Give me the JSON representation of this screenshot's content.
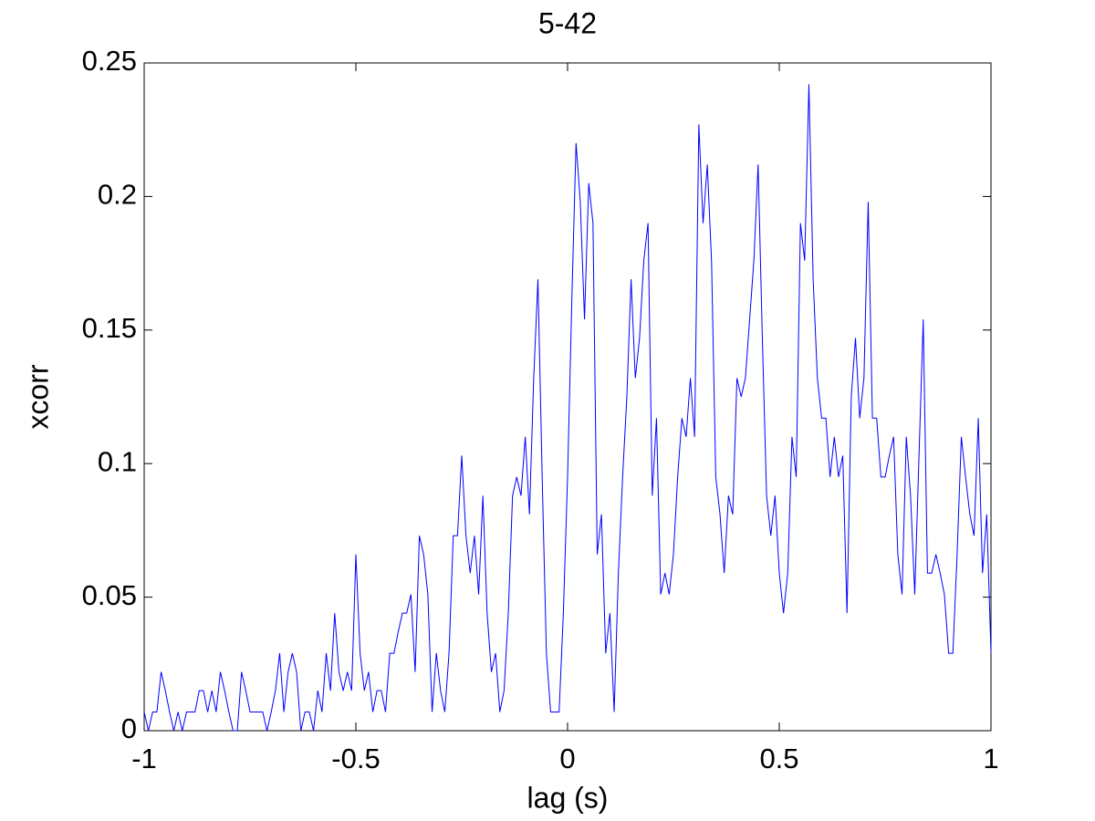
{
  "chart_data": {
    "type": "line",
    "title": "5-42",
    "x_label": "lag (s)",
    "y_label": "xcorr",
    "xlim": [
      -1,
      1
    ],
    "ylim": [
      0,
      0.25
    ],
    "xticks": [
      -1,
      -0.5,
      0,
      0.5,
      1
    ],
    "yticks": [
      0,
      0.05,
      0.1,
      0.15,
      0.2,
      0.25
    ],
    "grid": false,
    "series": [
      {
        "color": "#0000ff",
        "x": [
          -1,
          -0.99,
          -0.98,
          -0.97,
          -0.96,
          -0.95,
          -0.94,
          -0.93,
          -0.92,
          -0.91,
          -0.9,
          -0.89,
          -0.88,
          -0.87,
          -0.86,
          -0.85,
          -0.84,
          -0.83,
          -0.82,
          -0.81,
          -0.8,
          -0.79,
          -0.78,
          -0.77,
          -0.76,
          -0.75,
          -0.74,
          -0.73,
          -0.72,
          -0.71,
          -0.7,
          -0.69,
          -0.68,
          -0.67,
          -0.66,
          -0.65,
          -0.64,
          -0.63,
          -0.62,
          -0.61,
          -0.6,
          -0.59,
          -0.58,
          -0.57,
          -0.56,
          -0.55,
          -0.54,
          -0.53,
          -0.52,
          -0.51,
          -0.5,
          -0.49,
          -0.48,
          -0.47,
          -0.46,
          -0.45,
          -0.44,
          -0.43,
          -0.42,
          -0.41,
          -0.4,
          -0.39,
          -0.38,
          -0.37,
          -0.36,
          -0.35,
          -0.34,
          -0.33,
          -0.32,
          -0.31,
          -0.3,
          -0.29,
          -0.28,
          -0.27,
          -0.26,
          -0.25,
          -0.24,
          -0.23,
          -0.22,
          -0.21,
          -0.2,
          -0.19,
          -0.18,
          -0.17,
          -0.16,
          -0.15,
          -0.14,
          -0.13,
          -0.12,
          -0.11,
          -0.1,
          -0.09,
          -0.08,
          -0.07,
          -0.06,
          -0.05,
          -0.04,
          -0.03,
          -0.02,
          -0.01,
          0,
          0.01,
          0.02,
          0.03,
          0.04,
          0.05,
          0.06,
          0.07,
          0.08,
          0.09,
          0.1,
          0.11,
          0.12,
          0.13,
          0.14,
          0.15,
          0.16,
          0.17,
          0.18,
          0.19,
          0.2,
          0.21,
          0.22,
          0.23,
          0.24,
          0.25,
          0.26,
          0.27,
          0.28,
          0.29,
          0.3,
          0.31,
          0.32,
          0.33,
          0.34,
          0.35,
          0.36,
          0.37,
          0.38,
          0.39,
          0.4,
          0.41,
          0.42,
          0.43,
          0.44,
          0.45,
          0.46,
          0.47,
          0.48,
          0.49,
          0.5,
          0.51,
          0.52,
          0.53,
          0.54,
          0.55,
          0.56,
          0.57,
          0.58,
          0.59,
          0.6,
          0.61,
          0.62,
          0.63,
          0.64,
          0.65,
          0.66,
          0.67,
          0.68,
          0.69,
          0.7,
          0.71,
          0.72,
          0.73,
          0.74,
          0.75,
          0.76,
          0.77,
          0.78,
          0.79,
          0.8,
          0.81,
          0.82,
          0.83,
          0.84,
          0.85,
          0.86,
          0.87,
          0.88,
          0.89,
          0.9,
          0.91,
          0.92,
          0.93,
          0.94,
          0.95,
          0.96,
          0.97,
          0.98,
          0.99,
          1
        ],
        "values": [
          0.007,
          0,
          0.007,
          0.007,
          0.022,
          0.015,
          0.007,
          0,
          0.007,
          0,
          0.007,
          0.007,
          0.007,
          0.015,
          0.015,
          0.007,
          0.015,
          0.007,
          0.022,
          0.015,
          0.007,
          0,
          0,
          0.022,
          0.015,
          0.007,
          0.007,
          0.007,
          0.007,
          0,
          0.007,
          0.015,
          0.029,
          0.007,
          0.022,
          0.029,
          0.022,
          0,
          0.007,
          0.007,
          0,
          0.015,
          0.007,
          0.029,
          0.015,
          0.044,
          0.022,
          0.015,
          0.022,
          0.015,
          0.066,
          0.029,
          0.015,
          0.022,
          0.007,
          0.015,
          0.015,
          0.007,
          0.029,
          0.029,
          0.037,
          0.044,
          0.044,
          0.051,
          0.022,
          0.073,
          0.066,
          0.051,
          0.007,
          0.029,
          0.015,
          0.007,
          0.029,
          0.073,
          0.073,
          0.103,
          0.073,
          0.059,
          0.073,
          0.051,
          0.088,
          0.044,
          0.022,
          0.029,
          0.007,
          0.015,
          0.044,
          0.088,
          0.095,
          0.088,
          0.11,
          0.081,
          0.132,
          0.169,
          0.095,
          0.029,
          0.007,
          0.007,
          0.007,
          0.044,
          0.095,
          0.161,
          0.22,
          0.198,
          0.154,
          0.205,
          0.19,
          0.066,
          0.081,
          0.029,
          0.044,
          0.007,
          0.059,
          0.095,
          0.125,
          0.169,
          0.132,
          0.147,
          0.176,
          0.19,
          0.088,
          0.117,
          0.051,
          0.059,
          0.051,
          0.066,
          0.095,
          0.117,
          0.11,
          0.132,
          0.11,
          0.227,
          0.19,
          0.212,
          0.176,
          0.095,
          0.081,
          0.059,
          0.088,
          0.081,
          0.132,
          0.125,
          0.132,
          0.154,
          0.176,
          0.212,
          0.147,
          0.088,
          0.073,
          0.088,
          0.059,
          0.044,
          0.059,
          0.11,
          0.095,
          0.19,
          0.176,
          0.242,
          0.169,
          0.132,
          0.117,
          0.117,
          0.095,
          0.11,
          0.095,
          0.103,
          0.044,
          0.125,
          0.147,
          0.117,
          0.132,
          0.198,
          0.117,
          0.117,
          0.095,
          0.095,
          0.103,
          0.11,
          0.066,
          0.051,
          0.11,
          0.088,
          0.051,
          0.103,
          0.154,
          0.059,
          0.059,
          0.066,
          0.059,
          0.051,
          0.029,
          0.029,
          0.066,
          0.11,
          0.095,
          0.081,
          0.073,
          0.117,
          0.059,
          0.081,
          0.029
        ]
      }
    ]
  }
}
